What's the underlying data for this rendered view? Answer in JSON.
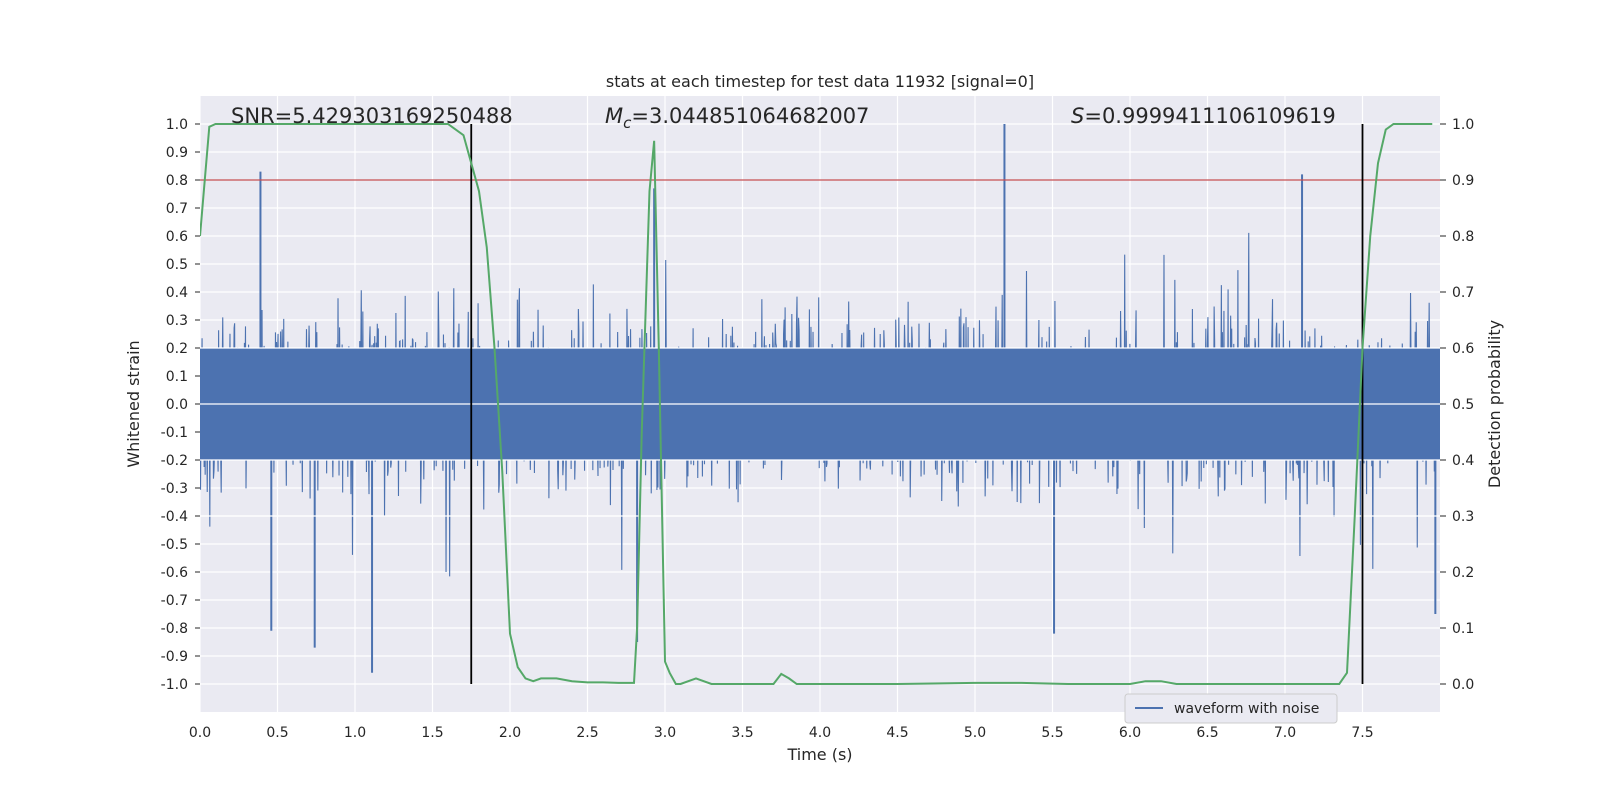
{
  "chart_data": {
    "type": "line",
    "title": "stats at each timestep for test data 11932 [signal=0]",
    "xlabel": "Time (s)",
    "ylabel": "Whitened strain",
    "y2label": "Detection probability",
    "xlim": [
      0.0,
      8.0
    ],
    "ylim": [
      -1.1,
      1.1
    ],
    "y2lim": [
      -0.05,
      1.05
    ],
    "x_ticks": [
      "0.0",
      "0.5",
      "1.0",
      "1.5",
      "2.0",
      "2.5",
      "3.0",
      "3.5",
      "4.0",
      "4.5",
      "5.0",
      "5.5",
      "6.0",
      "6.5",
      "7.0",
      "7.5"
    ],
    "y_ticks": [
      "1.0",
      "0.9",
      "0.8",
      "0.7",
      "0.6",
      "0.5",
      "0.4",
      "0.3",
      "0.2",
      "0.1",
      "0.0",
      "-0.1",
      "-0.2",
      "-0.3",
      "-0.4",
      "-0.5",
      "-0.6",
      "-0.7",
      "-0.8",
      "-0.9",
      "-1.0"
    ],
    "y2_ticks": [
      "1.0",
      "0.9",
      "0.8",
      "0.7",
      "0.6",
      "0.5",
      "0.4",
      "0.3",
      "0.2",
      "0.1",
      "0.0"
    ],
    "grid": true,
    "legend_position": "bottom-right",
    "annotations": {
      "snr": "SNR=5.429303169250488",
      "mc_symbol": "M",
      "mc_sub": "c",
      "mc_value": "=3.044851064682007",
      "s_symbol": "S",
      "s_value": "=0.9999411106109619"
    },
    "threshold_line": {
      "y2": 0.9,
      "color": "#c44e52"
    },
    "vertical_lines": [
      1.75,
      7.5
    ],
    "series": [
      {
        "name": "waveform with noise",
        "axis": "left",
        "color": "#4c72b0",
        "envelope_peaks": [
          {
            "x": 0.39,
            "y": 0.83
          },
          {
            "x": 1.11,
            "y": -0.96
          },
          {
            "x": 0.74,
            "y": -0.87
          },
          {
            "x": 0.46,
            "y": -0.81
          },
          {
            "x": 2.82,
            "y": -0.85
          },
          {
            "x": 2.93,
            "y": 0.77
          },
          {
            "x": 5.19,
            "y": 1.0
          },
          {
            "x": 5.51,
            "y": -0.82
          },
          {
            "x": 7.11,
            "y": 0.82
          },
          {
            "x": 7.97,
            "y": -0.75
          }
        ]
      },
      {
        "axis": "right",
        "color": "#55a868",
        "x": [
          0.0,
          0.06,
          0.1,
          0.2,
          0.3,
          0.5,
          0.7,
          0.9,
          1.1,
          1.3,
          1.4,
          1.5,
          1.6,
          1.7,
          1.75,
          1.8,
          1.85,
          1.9,
          1.95,
          2.0,
          2.05,
          2.1,
          2.15,
          2.2,
          2.3,
          2.4,
          2.5,
          2.6,
          2.7,
          2.8,
          2.82,
          2.85,
          2.9,
          2.93,
          2.96,
          3.0,
          3.03,
          3.07,
          3.1,
          3.2,
          3.3,
          3.5,
          3.7,
          3.75,
          3.8,
          3.85,
          4.0,
          4.5,
          5.0,
          5.3,
          5.6,
          6.0,
          6.1,
          6.2,
          6.3,
          6.5,
          7.0,
          7.2,
          7.35,
          7.4,
          7.45,
          7.5,
          7.55,
          7.6,
          7.65,
          7.7,
          7.8,
          7.95
        ],
        "y": [
          0.8,
          0.995,
          1.0,
          1.0,
          1.0,
          1.0,
          1.0,
          1.0,
          1.0,
          1.0,
          1.0,
          1.0,
          1.0,
          0.98,
          0.93,
          0.88,
          0.78,
          0.6,
          0.38,
          0.09,
          0.03,
          0.01,
          0.005,
          0.01,
          0.01,
          0.005,
          0.003,
          0.003,
          0.002,
          0.002,
          0.1,
          0.45,
          0.88,
          0.97,
          0.6,
          0.04,
          0.02,
          0.0,
          0.0,
          0.01,
          0.0,
          0.0,
          0.0,
          0.018,
          0.01,
          0.0,
          0.0,
          0.0,
          0.002,
          0.002,
          0.0,
          0.0,
          0.005,
          0.005,
          0.0,
          0.0,
          0.0,
          0.0,
          0.0,
          0.02,
          0.3,
          0.6,
          0.8,
          0.93,
          0.99,
          1.0,
          1.0,
          1.0
        ]
      }
    ]
  }
}
